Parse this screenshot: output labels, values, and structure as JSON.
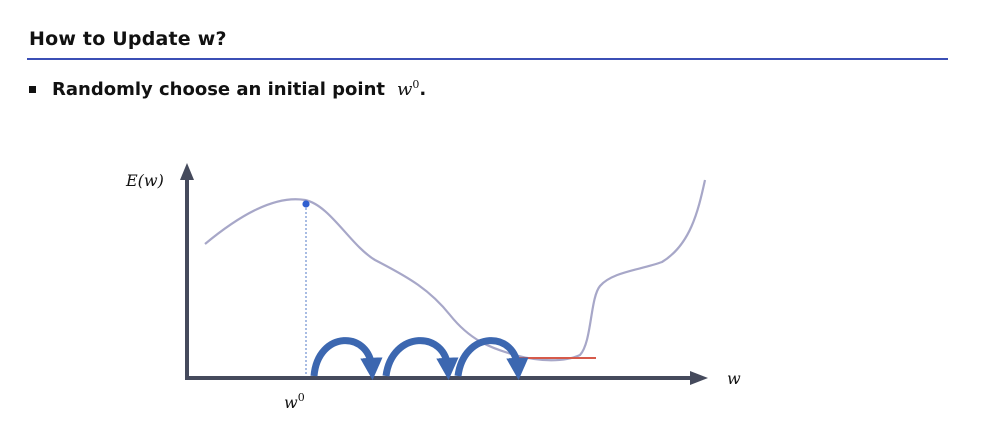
{
  "slide": {
    "title": "How to Update w?",
    "bullet_text": "Randomly choose an initial point",
    "bullet_variable": "w",
    "bullet_variable_sup": "0",
    "bullet_trailing": "."
  },
  "diagram": {
    "y_axis_label": "E(w)",
    "x_axis_label": "w",
    "initial_point_label": "w",
    "initial_point_sup": "0",
    "colors": {
      "curve": "#a7a7c8",
      "axis": "#454a5c",
      "guide": "#6f8fd0",
      "point": "#2f5fd0",
      "steps": "#3c67b0",
      "minimum_line": "#d65a4a",
      "title_rule": "#3b4fb5"
    }
  }
}
